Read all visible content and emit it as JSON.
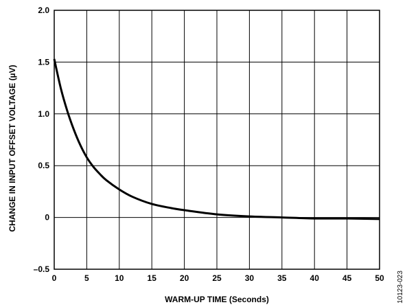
{
  "chart_data": {
    "type": "line",
    "xlabel": "WARM-UP TIME (Seconds)",
    "ylabel": "CHANGE IN INPUT OFFSET VOLTAGE (µV)",
    "xlim": [
      0,
      50
    ],
    "ylim": [
      -0.5,
      2.0
    ],
    "xticks": [
      0,
      5,
      10,
      15,
      20,
      25,
      30,
      35,
      40,
      45,
      50
    ],
    "yticks": [
      -0.5,
      0,
      0.5,
      1.0,
      1.5,
      2.0
    ],
    "ytick_labels": [
      "–0.5",
      "0",
      "0.5",
      "1.0",
      "1.5",
      "2.0"
    ],
    "grid": true,
    "series": [
      {
        "x": [
          0,
          1,
          2,
          3,
          4,
          5,
          6,
          7,
          8,
          10,
          12,
          15,
          18,
          20,
          25,
          30,
          35,
          40,
          45,
          50
        ],
        "y": [
          1.53,
          1.25,
          1.03,
          0.85,
          0.7,
          0.58,
          0.49,
          0.42,
          0.36,
          0.27,
          0.2,
          0.13,
          0.09,
          0.07,
          0.03,
          0.01,
          0.0,
          -0.01,
          -0.01,
          -0.015
        ]
      }
    ]
  },
  "figure_id": "10123-023"
}
